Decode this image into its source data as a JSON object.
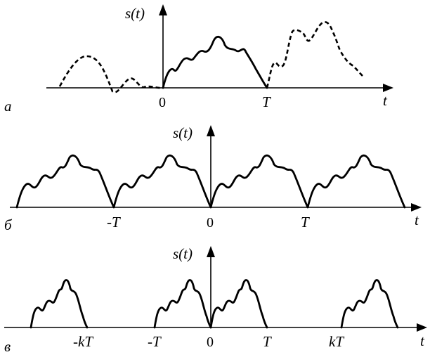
{
  "panel_a": {
    "letter": "а",
    "ylabel": "s(t)",
    "xlabel": "t",
    "ticks": [
      "0",
      "T"
    ]
  },
  "panel_b": {
    "letter": "б",
    "ylabel": "s(t)",
    "xlabel": "t",
    "ticks": [
      "-T",
      "0",
      "T"
    ]
  },
  "panel_c": {
    "letter": "в",
    "ylabel": "s(t)",
    "xlabel": "t",
    "ticks": [
      "-kT",
      "-T",
      "0",
      "T",
      "kT"
    ]
  }
}
